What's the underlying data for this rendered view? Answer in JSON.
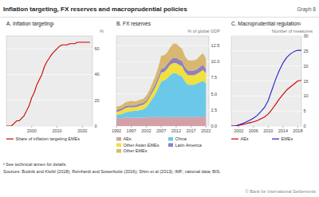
{
  "title": "Inflation targeting, FX reserves and macroprudential policies",
  "subtitle": "Graph 8",
  "annotations": [
    "¹ See technical annex for details.",
    "Sources: Budnik and Kleibl (2018); Reinhardt and Sowerbutts (2016); Shim et al (2013); IMF; national data; BIS.",
    "© Bank for International Settlements"
  ],
  "chart_data": [
    {
      "type": "line",
      "title": "A. Inflation targeting¹",
      "ylabel": "%",
      "x": [
        1990,
        1991,
        1992,
        1993,
        1994,
        1995,
        1996,
        1997,
        1998,
        1999,
        2000,
        2001,
        2002,
        2003,
        2004,
        2005,
        2006,
        2007,
        2008,
        2009,
        2010,
        2011,
        2012,
        2013,
        2014,
        2015,
        2016,
        2017,
        2018,
        2019,
        2020,
        2021,
        2022,
        2023
      ],
      "series": [
        {
          "name": "Share of inflation targeting EMEs",
          "color": "#cc0000",
          "values": [
            0,
            0,
            0,
            2,
            4,
            4,
            6,
            8,
            12,
            16,
            22,
            26,
            32,
            36,
            40,
            46,
            50,
            53,
            56,
            58,
            60,
            62,
            63,
            63,
            63,
            64,
            64,
            64,
            65,
            65,
            65,
            65,
            65,
            65
          ]
        }
      ],
      "xlim": [
        1990,
        2024
      ],
      "xticks": [
        2000,
        2010,
        2020
      ],
      "ylim": [
        0,
        70
      ],
      "yticks": [
        0,
        20,
        40,
        60
      ],
      "grid": true,
      "legend": "bottom"
    },
    {
      "type": "area",
      "stacked": true,
      "title": "B. FX reserves",
      "ylabel": "% of global GDP",
      "x": [
        1992,
        1993,
        1994,
        1995,
        1996,
        1997,
        1998,
        1999,
        2000,
        2001,
        2002,
        2003,
        2004,
        2005,
        2006,
        2007,
        2008,
        2009,
        2010,
        2011,
        2012,
        2013,
        2014,
        2015,
        2016,
        2017,
        2018,
        2019,
        2020,
        2021,
        2022
      ],
      "series": [
        {
          "name": "AEs",
          "color": "#d4a0a8",
          "values": [
            1.2,
            1.2,
            1.2,
            1.3,
            1.3,
            1.3,
            1.3,
            1.3,
            1.3,
            1.3,
            1.3,
            1.4,
            1.4,
            1.4,
            1.4,
            1.4,
            1.3,
            1.4,
            1.4,
            1.4,
            1.4,
            1.4,
            1.4,
            1.4,
            1.4,
            1.4,
            1.4,
            1.4,
            1.5,
            1.5,
            1.4
          ]
        },
        {
          "name": "China",
          "color": "#6cc8e8",
          "values": [
            0.5,
            0.6,
            0.7,
            0.8,
            0.9,
            1.0,
            1.1,
            1.1,
            1.2,
            1.3,
            1.6,
            2.1,
            2.8,
            3.5,
            4.5,
            5.5,
            5.8,
            6.0,
            6.5,
            6.8,
            6.8,
            6.5,
            6.3,
            5.5,
            5.0,
            5.0,
            5.0,
            5.2,
            5.3,
            5.5,
            5.2
          ]
        },
        {
          "name": "Other Asian EMEs",
          "color": "#f0e040",
          "values": [
            0.5,
            0.5,
            0.6,
            0.7,
            0.7,
            0.6,
            0.5,
            0.6,
            0.7,
            0.7,
            0.8,
            0.9,
            1.0,
            1.1,
            1.2,
            1.4,
            1.3,
            1.5,
            1.6,
            1.6,
            1.6,
            1.6,
            1.6,
            1.5,
            1.5,
            1.5,
            1.5,
            1.5,
            1.6,
            1.7,
            1.6
          ]
        },
        {
          "name": "Latin America",
          "color": "#9080c0",
          "values": [
            0.3,
            0.3,
            0.3,
            0.3,
            0.3,
            0.3,
            0.3,
            0.3,
            0.3,
            0.3,
            0.3,
            0.3,
            0.4,
            0.5,
            0.5,
            0.6,
            0.6,
            0.7,
            0.7,
            0.8,
            0.8,
            0.8,
            0.8,
            0.7,
            0.7,
            0.7,
            0.7,
            0.7,
            0.8,
            0.8,
            0.7
          ]
        },
        {
          "name": "Other EMEs",
          "color": "#d8b870",
          "values": [
            0.5,
            0.5,
            0.5,
            0.6,
            0.6,
            0.7,
            0.6,
            0.6,
            0.6,
            0.6,
            0.7,
            0.8,
            1.0,
            1.2,
            1.5,
            2.0,
            2.0,
            1.8,
            2.0,
            2.2,
            2.2,
            2.1,
            1.9,
            1.7,
            1.6,
            1.6,
            1.6,
            1.6,
            1.7,
            1.8,
            1.6
          ]
        }
      ],
      "xlim": [
        1992,
        2023
      ],
      "xticks": [
        1992,
        1997,
        2002,
        2007,
        2012,
        2017,
        2022
      ],
      "ylim": [
        0,
        14
      ],
      "yticks": [
        {
          "value": 0,
          "label": "0.0"
        },
        2.5,
        {
          "value": 5,
          "label": "5.0"
        },
        7.5,
        {
          "value": 10,
          "label": "10.0"
        },
        12.5
      ],
      "grid": true,
      "legend": "bottom"
    },
    {
      "type": "line",
      "title": "C. Macroprudential regulation¹",
      "ylabel": "Number of measures",
      "x": [
        2000,
        2001,
        2002,
        2003,
        2004,
        2005,
        2006,
        2007,
        2008,
        2009,
        2010,
        2011,
        2012,
        2013,
        2014,
        2015,
        2016,
        2017,
        2018,
        2019
      ],
      "series": [
        {
          "name": "AEs",
          "color": "#cc0000",
          "values": [
            0,
            0,
            0.2,
            0.5,
            0.8,
            1.1,
            1.4,
            1.8,
            2.4,
            3.0,
            4.0,
            5.5,
            7.2,
            9.0,
            10.5,
            12.0,
            13.0,
            14.0,
            15.0,
            15.2
          ]
        },
        {
          "name": "EMEs",
          "color": "#2222cc",
          "values": [
            0,
            0,
            0.4,
            0.8,
            1.3,
            1.9,
            2.6,
            3.5,
            4.8,
            6.2,
            8.5,
            12.0,
            15.5,
            18.5,
            21.0,
            22.8,
            24.0,
            24.8,
            25.2,
            25.2
          ]
        }
      ],
      "xlim": [
        2000,
        2019
      ],
      "xticks": [
        2002,
        2006,
        2010,
        2014,
        2018
      ],
      "ylim": [
        0,
        30
      ],
      "yticks": [
        0,
        5,
        10,
        15,
        20,
        25,
        30
      ],
      "grid": true,
      "legend": "bottom"
    }
  ]
}
